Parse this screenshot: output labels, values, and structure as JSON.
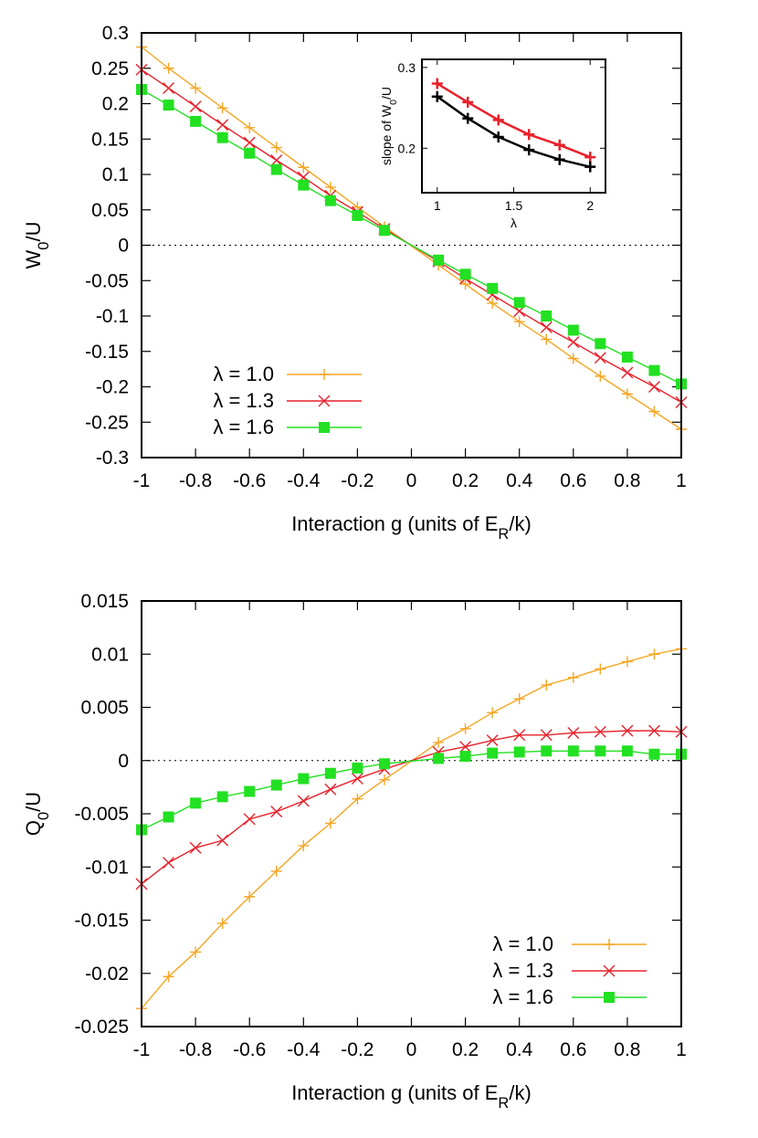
{
  "chart_data": [
    {
      "type": "line",
      "xlabel": "Interaction g (units of E",
      "xlabel_sub": "R",
      "xlabel_tail": "/k)",
      "ylabel": "W",
      "ylabel_sub": "0",
      "ylabel_tail": "/U",
      "xlim": [
        -1,
        1
      ],
      "ylim": [
        -0.3,
        0.3
      ],
      "xticks": [
        "-1",
        "-0.8",
        "-0.6",
        "-0.4",
        "-0.2",
        "0",
        "0.2",
        "0.4",
        "0.6",
        "0.8",
        "1"
      ],
      "xtick_values": [
        -1,
        -0.8,
        -0.6,
        -0.4,
        -0.2,
        0,
        0.2,
        0.4,
        0.6,
        0.8,
        1
      ],
      "yticks": [
        "-0.3",
        "-0.25",
        "-0.2",
        "-0.15",
        "-0.1",
        "-0.05",
        "0",
        "0.05",
        "0.1",
        "0.15",
        "0.2",
        "0.25",
        "0.3"
      ],
      "ytick_values": [
        -0.3,
        -0.25,
        -0.2,
        -0.15,
        -0.1,
        -0.05,
        0,
        0.05,
        0.1,
        0.15,
        0.2,
        0.25,
        0.3
      ],
      "zero_line": true,
      "legend_position": "bottom-left",
      "series": [
        {
          "name": "λ = 1.0",
          "color": "#f5a623",
          "marker": "plus",
          "x": [
            -1,
            -0.9,
            -0.8,
            -0.7,
            -0.6,
            -0.5,
            -0.4,
            -0.3,
            -0.2,
            -0.1,
            0.1,
            0.2,
            0.3,
            0.4,
            0.5,
            0.6,
            0.7,
            0.8,
            0.9,
            1
          ],
          "y": [
            0.28,
            0.25,
            0.222,
            0.194,
            0.166,
            0.138,
            0.11,
            0.082,
            0.054,
            0.026,
            -0.028,
            -0.055,
            -0.082,
            -0.108,
            -0.133,
            -0.16,
            -0.185,
            -0.21,
            -0.235,
            -0.26
          ]
        },
        {
          "name": "λ = 1.3",
          "color": "#e8212b",
          "marker": "cross",
          "x": [
            -1,
            -0.9,
            -0.8,
            -0.7,
            -0.6,
            -0.5,
            -0.4,
            -0.3,
            -0.2,
            -0.1,
            0.1,
            0.2,
            0.3,
            0.4,
            0.5,
            0.6,
            0.7,
            0.8,
            0.9,
            1
          ],
          "y": [
            0.248,
            0.222,
            0.196,
            0.17,
            0.145,
            0.12,
            0.096,
            0.07,
            0.047,
            0.023,
            -0.023,
            -0.047,
            -0.07,
            -0.093,
            -0.116,
            -0.137,
            -0.159,
            -0.18,
            -0.2,
            -0.222
          ]
        },
        {
          "name": "λ = 1.6",
          "color": "#22e022",
          "marker": "square",
          "x": [
            -1,
            -0.9,
            -0.8,
            -0.7,
            -0.6,
            -0.5,
            -0.4,
            -0.3,
            -0.2,
            -0.1,
            0.1,
            0.2,
            0.3,
            0.4,
            0.5,
            0.6,
            0.7,
            0.8,
            0.9,
            1
          ],
          "y": [
            0.22,
            0.198,
            0.175,
            0.152,
            0.13,
            0.107,
            0.085,
            0.063,
            0.042,
            0.021,
            -0.021,
            -0.041,
            -0.061,
            -0.081,
            -0.1,
            -0.12,
            -0.139,
            -0.158,
            -0.177,
            -0.196
          ]
        }
      ],
      "inset": {
        "type": "line",
        "xlabel": "λ",
        "ylabel": "slope of W",
        "ylabel_sub": "0",
        "ylabel_tail": "/U",
        "xlim": [
          0.9,
          2.1
        ],
        "ylim": [
          0.145,
          0.31
        ],
        "xticks": [
          "1",
          "1.5",
          "2"
        ],
        "xtick_values": [
          1,
          1.5,
          2
        ],
        "yticks": [
          "0.2",
          "0.3"
        ],
        "ytick_values": [
          0.2,
          0.3
        ],
        "series": [
          {
            "color": "#e8212b",
            "marker": "plus",
            "x": [
              1,
              1.2,
              1.4,
              1.6,
              1.8,
              2
            ],
            "y": [
              0.28,
              0.257,
              0.235,
              0.217,
              0.204,
              0.189
            ]
          },
          {
            "color": "#000000",
            "marker": "plus",
            "x": [
              1,
              1.2,
              1.4,
              1.6,
              1.8,
              2
            ],
            "y": [
              0.264,
              0.237,
              0.214,
              0.198,
              0.186,
              0.177
            ]
          }
        ]
      }
    },
    {
      "type": "line",
      "xlabel": "Interaction g (units of E",
      "xlabel_sub": "R",
      "xlabel_tail": "/k)",
      "ylabel": "Q",
      "ylabel_sub": "0",
      "ylabel_tail": "/U",
      "xlim": [
        -1,
        1
      ],
      "ylim": [
        -0.025,
        0.015
      ],
      "xticks": [
        "-1",
        "-0.8",
        "-0.6",
        "-0.4",
        "-0.2",
        "0",
        "0.2",
        "0.4",
        "0.6",
        "0.8",
        "1"
      ],
      "xtick_values": [
        -1,
        -0.8,
        -0.6,
        -0.4,
        -0.2,
        0,
        0.2,
        0.4,
        0.6,
        0.8,
        1
      ],
      "yticks": [
        "-0.025",
        "-0.02",
        "-0.015",
        "-0.01",
        "-0.005",
        "0",
        "0.005",
        "0.01",
        "0.015"
      ],
      "ytick_values": [
        -0.025,
        -0.02,
        -0.015,
        -0.01,
        -0.005,
        0,
        0.005,
        0.01,
        0.015
      ],
      "zero_line": true,
      "legend_position": "bottom-right",
      "series": [
        {
          "name": "λ = 1.0",
          "color": "#f5a623",
          "marker": "plus",
          "x": [
            -1,
            -0.9,
            -0.8,
            -0.7,
            -0.6,
            -0.5,
            -0.4,
            -0.3,
            -0.2,
            -0.1,
            0.1,
            0.2,
            0.3,
            0.4,
            0.5,
            0.6,
            0.7,
            0.8,
            0.9,
            1
          ],
          "y": [
            -0.0233,
            -0.0203,
            -0.018,
            -0.0153,
            -0.0128,
            -0.0104,
            -0.008,
            -0.0059,
            -0.0036,
            -0.0018,
            0.0017,
            0.003,
            0.0045,
            0.0058,
            0.0071,
            0.0078,
            0.0086,
            0.0093,
            0.01,
            0.0105
          ]
        },
        {
          "name": "λ = 1.3",
          "color": "#e8212b",
          "marker": "cross",
          "x": [
            -1,
            -0.9,
            -0.8,
            -0.7,
            -0.6,
            -0.5,
            -0.4,
            -0.3,
            -0.2,
            -0.1,
            0.1,
            0.2,
            0.3,
            0.4,
            0.5,
            0.6,
            0.7,
            0.8,
            0.9,
            1
          ],
          "y": [
            -0.0116,
            -0.0096,
            -0.0082,
            -0.0075,
            -0.0055,
            -0.0048,
            -0.0038,
            -0.0027,
            -0.0017,
            -0.0008,
            0.0008,
            0.0013,
            0.0019,
            0.0024,
            0.0024,
            0.0026,
            0.0027,
            0.0028,
            0.0028,
            0.0027
          ]
        },
        {
          "name": "λ = 1.6",
          "color": "#22e022",
          "marker": "square",
          "x": [
            -1,
            -0.9,
            -0.8,
            -0.7,
            -0.6,
            -0.5,
            -0.4,
            -0.3,
            -0.2,
            -0.1,
            0.1,
            0.2,
            0.3,
            0.4,
            0.5,
            0.6,
            0.7,
            0.8,
            0.9,
            1
          ],
          "y": [
            -0.0065,
            -0.0053,
            -0.004,
            -0.0034,
            -0.0029,
            -0.0023,
            -0.0017,
            -0.0012,
            -0.0007,
            -0.0003,
            0.0002,
            0.0004,
            0.0007,
            0.0008,
            0.0009,
            0.0009,
            0.0009,
            0.0009,
            0.0006,
            0.0006
          ]
        }
      ]
    }
  ]
}
